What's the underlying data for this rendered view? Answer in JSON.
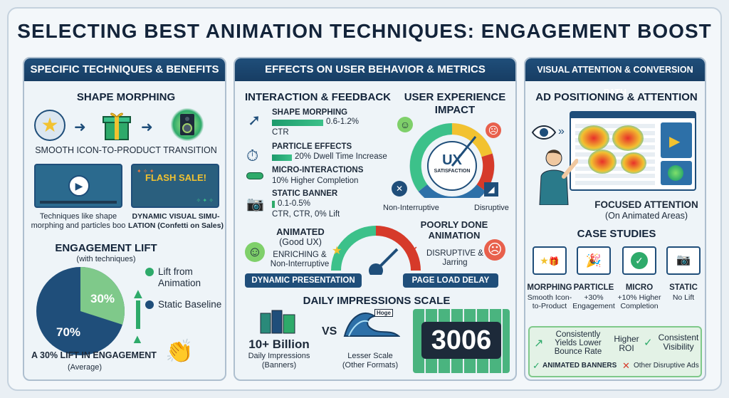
{
  "title": "SELECTING BEST ANIMATION TECHNIQUES: ENGAGEMENT BOOST",
  "left_panel": {
    "header": "SPECIFIC TECHNIQUES & BENEFITS",
    "shape_morphing": {
      "title": "SHAPE MORPHING",
      "caption": "SMOOTH ICON-TO-PRODUCT TRANSITION"
    },
    "thumb_left_caption": "Techniques like shape morphing and particles boo",
    "thumb_right": {
      "text": "FLASH SALE!",
      "caption": "DYNAMIC VISUAL SIMU-LATION (Confetti on Sales)"
    },
    "engagement": {
      "title": "ENGAGEMENT LIFT",
      "subtitle": "(with techniques)",
      "legend_lift": "Lift from Animation",
      "legend_static": "Static Baseline",
      "pct_lift": "30%",
      "pct_static": "70%",
      "caption": "A 30% LIFT IN ENGAGEMENT",
      "caption_sub": "(Average)"
    }
  },
  "mid_panel": {
    "header": "EFFECTS ON USER BEHAVIOR & METRICS",
    "interaction_title": "INTERACTION & FEEDBACK",
    "metrics": [
      {
        "label": "SHAPE MORPHING",
        "value": "0.6-1.2%",
        "extra": "CTR"
      },
      {
        "label": "PARTICLE EFFECTS",
        "value": "20% Dwell Time Increase",
        "extra": ""
      },
      {
        "label": "MICRO-INTERACTIONS",
        "value": "10% Higher Completion",
        "extra": ""
      },
      {
        "label": "STATIC BANNER",
        "value": "0.1-0.5%",
        "extra": "CTR, CTR, 0% Lift"
      }
    ],
    "ux": {
      "title": "USER EXPERIENCE IMPACT",
      "gauge_big": "UX",
      "gauge_small": "SATISFACTION",
      "left_label": "Non-Interruptive",
      "right_label": "Disruptive"
    },
    "animated": {
      "title": "ANIMATED",
      "sub": "(Good UX)",
      "desc": "ENRICHING & Non-Interruptive"
    },
    "poor": {
      "title": "POORLY DONE ANIMATION",
      "desc": "DISRUPTIVE & Jarring"
    },
    "pill_left": "DYNAMIC PRESENTATION",
    "pill_right": "PAGE LOAD DELAY",
    "impressions": {
      "title": "DAILY IMPRESSIONS SCALE",
      "big": "10+ Billion",
      "big_sub": "Daily Impressions",
      "big_sub2": "(Banners)",
      "vs": "VS",
      "wave_tag": "Hoge",
      "lesser": "Lesser Scale",
      "lesser_sub": "(Other Formats)",
      "counter": "3006"
    }
  },
  "right_panel": {
    "header": "VISUAL ATTENTION & CONVERSION PATH",
    "ad_title": "AD POSITIONING & ATTENTION",
    "focused": "FOCUSED ATTENTION",
    "focused_sub": "(On Animated Areas)",
    "case_title": "CASE STUDIES",
    "cases": [
      {
        "title": "MORPHING",
        "desc": "Smooth Icon-to-Product"
      },
      {
        "title": "PARTICLE",
        "desc": "+30% Engagement"
      },
      {
        "title": "MICRO",
        "desc": "+10% Higher Completion"
      },
      {
        "title": "STATIC",
        "desc": "No Lift"
      }
    ],
    "bottom": {
      "consistently": "Consistently Yields Lower Bounce Rate",
      "higher_roi": "Higher ROI",
      "consistent": "Consistent Visibility",
      "animated": "ANIMATED BANNERS",
      "other": "Other Disruptive Ads"
    }
  },
  "colors": {
    "navy": "#1f4e7a",
    "green": "#2eaa6a",
    "red": "#d63a2a",
    "yellow": "#f2c230"
  }
}
